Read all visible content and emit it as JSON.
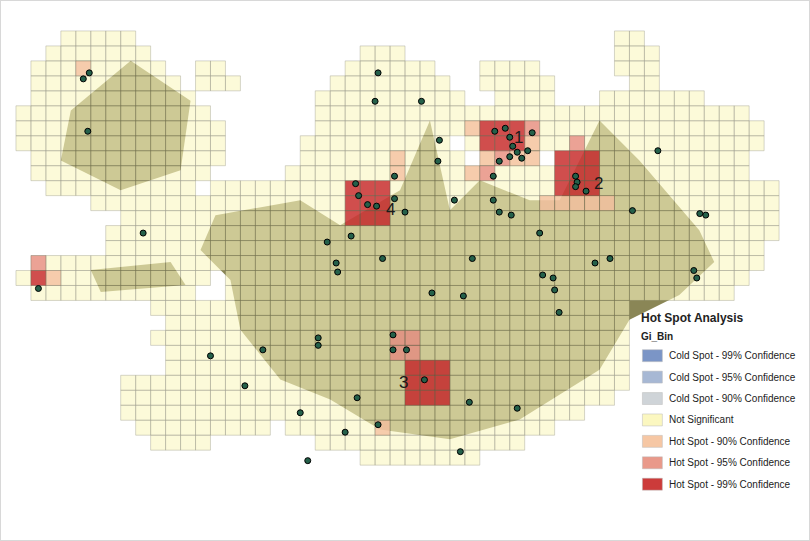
{
  "chart_data": {
    "type": "map",
    "tick_labels": false,
    "xlim": [
      0,
      54
    ],
    "ylim": [
      36,
      0
    ],
    "legend": "lower right",
    "legend_title": "Hot Spot Analysis",
    "legend_subtitle": "Gi_Bin",
    "classes": [
      {
        "name": "Cold Spot - 99% Confidence",
        "color": "#7b95c6"
      },
      {
        "name": "Cold Spot - 95% Confidence",
        "color": "#a7b8d4"
      },
      {
        "name": "Cold Spot - 90% Confidence",
        "color": "#cfd4d8"
      },
      {
        "name": "Not Significant",
        "color": "#fbf7c0",
        "rows": [
          {
            "row": 2,
            "cols": [
              [
                4,
                8
              ],
              [
                41,
                42
              ]
            ]
          },
          {
            "row": 3,
            "cols": [
              [
                3,
                9
              ],
              [
                24,
                26
              ],
              [
                41,
                43
              ]
            ]
          },
          {
            "row": 4,
            "cols": [
              [
                2,
                10
              ],
              [
                13,
                14
              ],
              [
                23,
                28
              ],
              [
                32,
                35
              ],
              [
                41,
                43
              ]
            ]
          },
          {
            "row": 5,
            "cols": [
              [
                2,
                11
              ],
              [
                13,
                15
              ],
              [
                22,
                29
              ],
              [
                32,
                36
              ],
              [
                42,
                43
              ]
            ]
          },
          {
            "row": 6,
            "cols": [
              [
                2,
                12
              ],
              [
                21,
                30
              ],
              [
                33,
                36
              ],
              [
                40,
                46
              ]
            ]
          },
          {
            "row": 7,
            "cols": [
              [
                1,
                13
              ],
              [
                21,
                31
              ],
              [
                32,
                37
              ],
              [
                38,
                49
              ]
            ]
          },
          {
            "row": 8,
            "cols": [
              [
                1,
                14
              ],
              [
                21,
                30
              ],
              [
                31,
                50
              ]
            ]
          },
          {
            "row": 9,
            "cols": [
              [
                1,
                14
              ],
              [
                20,
                29
              ],
              [
                31,
                50
              ]
            ]
          },
          {
            "row": 10,
            "cols": [
              [
                2,
                14
              ],
              [
                20,
                30
              ],
              [
                32,
                35
              ],
              [
                37,
                49
              ]
            ]
          },
          {
            "row": 11,
            "cols": [
              [
                2,
                13
              ],
              [
                19,
                31
              ],
              [
                32,
                49
              ]
            ]
          },
          {
            "row": 12,
            "cols": [
              [
                3,
                12
              ],
              [
                14,
                51
              ]
            ]
          },
          {
            "row": 13,
            "cols": [
              [
                6,
                12
              ],
              [
                13,
                51
              ]
            ]
          },
          {
            "row": 14,
            "cols": [
              [
                8,
                51
              ]
            ]
          },
          {
            "row": 15,
            "cols": [
              [
                7,
                51
              ]
            ]
          },
          {
            "row": 16,
            "cols": [
              [
                7,
                50
              ]
            ]
          },
          {
            "row": 17,
            "cols": [
              [
                2,
                13
              ],
              [
                14,
                50
              ]
            ]
          },
          {
            "row": 18,
            "cols": [
              [
                1,
                13
              ],
              [
                15,
                49
              ]
            ]
          },
          {
            "row": 19,
            "cols": [
              [
                2,
                12
              ],
              [
                15,
                48
              ]
            ]
          },
          {
            "row": 20,
            "cols": [
              [
                10,
                41
              ]
            ]
          },
          {
            "row": 21,
            "cols": [
              [
                11,
                41
              ]
            ]
          },
          {
            "row": 22,
            "cols": [
              [
                10,
                41
              ]
            ]
          },
          {
            "row": 23,
            "cols": [
              [
                11,
                41
              ]
            ]
          },
          {
            "row": 24,
            "cols": [
              [
                11,
                41
              ]
            ]
          },
          {
            "row": 25,
            "cols": [
              [
                8,
                41
              ]
            ]
          },
          {
            "row": 26,
            "cols": [
              [
                8,
                40
              ]
            ]
          },
          {
            "row": 27,
            "cols": [
              [
                8,
                38
              ]
            ]
          },
          {
            "row": 28,
            "cols": [
              [
                9,
                17
              ],
              [
                19,
                36
              ]
            ]
          },
          {
            "row": 29,
            "cols": [
              [
                10,
                13
              ],
              [
                21,
                34
              ]
            ]
          },
          {
            "row": 30,
            "cols": [
              [
                24,
                31
              ]
            ]
          }
        ]
      },
      {
        "name": "Hot Spot - 90% Confidence",
        "color": "#f6c7a4",
        "cells": [
          [
            31,
            8
          ],
          [
            35,
            9
          ],
          [
            34,
            10
          ],
          [
            35,
            10
          ],
          [
            32,
            10
          ],
          [
            26,
            10
          ],
          [
            26,
            11
          ],
          [
            31,
            11
          ],
          [
            36,
            13
          ],
          [
            37,
            13
          ],
          [
            38,
            13
          ],
          [
            39,
            13
          ],
          [
            40,
            13
          ],
          [
            25,
            28
          ],
          [
            3,
            18
          ],
          [
            5,
            4
          ]
        ]
      },
      {
        "name": "Hot Spot - 95% Confidence",
        "color": "#e9998a",
        "cells": [
          [
            33,
            10
          ],
          [
            35,
            8
          ],
          [
            38,
            9
          ],
          [
            26,
            22
          ],
          [
            27,
            22
          ],
          [
            26,
            23
          ],
          [
            27,
            23
          ],
          [
            2,
            17
          ],
          [
            32,
            11
          ]
        ]
      },
      {
        "name": "Hot Spot - 99% Confidence",
        "color": "#cc3b3a",
        "cells": [
          [
            32,
            8
          ],
          [
            33,
            8
          ],
          [
            34,
            8
          ],
          [
            32,
            9
          ],
          [
            33,
            9
          ],
          [
            34,
            9
          ],
          [
            37,
            10
          ],
          [
            38,
            10
          ],
          [
            39,
            10
          ],
          [
            37,
            11
          ],
          [
            38,
            11
          ],
          [
            39,
            11
          ],
          [
            37,
            12
          ],
          [
            38,
            12
          ],
          [
            39,
            12
          ],
          [
            23,
            12
          ],
          [
            24,
            12
          ],
          [
            25,
            12
          ],
          [
            23,
            13
          ],
          [
            24,
            13
          ],
          [
            25,
            13
          ],
          [
            23,
            14
          ],
          [
            24,
            14
          ],
          [
            25,
            14
          ],
          [
            27,
            24
          ],
          [
            28,
            24
          ],
          [
            29,
            24
          ],
          [
            27,
            25
          ],
          [
            28,
            25
          ],
          [
            29,
            25
          ],
          [
            27,
            26
          ],
          [
            28,
            26
          ],
          [
            29,
            26
          ],
          [
            2,
            18
          ]
        ]
      }
    ],
    "points": {
      "color": "#24604a",
      "marker": "circle",
      "x": [
        5.9,
        5.5,
        5.8,
        9.5,
        2.5,
        25,
        28.1,
        29.2,
        30.3,
        26.3,
        26.3,
        23.9,
        24.5,
        25.1,
        27,
        23.7,
        33,
        33.7,
        34,
        34.2,
        34.5,
        34,
        34.8,
        35.2,
        35.5,
        33.3,
        32.9,
        38.4,
        38.5,
        39.1,
        38.4,
        33.3,
        34.1,
        36,
        36.2,
        37,
        36.9,
        39.7,
        40.7,
        42.2,
        43.9,
        46.7,
        47.1,
        46.3,
        46.5,
        21.8,
        22.4,
        22.5,
        23.4,
        25.5,
        31.5,
        30.9,
        28.8,
        21.2,
        21.2,
        26.2,
        27.1,
        26.2,
        28.3,
        25.2,
        23.8,
        23,
        20.5,
        20,
        31.3,
        30.7,
        34.5,
        37.3,
        17.5,
        16.3,
        14,
        25.2,
        29.3,
        32.9
      ],
      "y": [
        4.8,
        5.2,
        8.7,
        15.5,
        19.2,
        6.7,
        6.7,
        10.7,
        13.3,
        11.7,
        13.2,
        13,
        13.6,
        13.7,
        14.1,
        12.2,
        8.7,
        8.5,
        9.1,
        9.7,
        10.1,
        10.4,
        10.5,
        10,
        8.8,
        10.7,
        11.7,
        11.7,
        12.1,
        12.7,
        12.4,
        14.1,
        14.3,
        15.5,
        18.3,
        19.3,
        18.5,
        17.5,
        17.2,
        14,
        10,
        14.2,
        14.3,
        18,
        18.5,
        16.1,
        17.5,
        18.1,
        15.7,
        17.2,
        17.2,
        19.7,
        19.5,
        22.5,
        23,
        23.3,
        23.3,
        22.3,
        25.3,
        28.3,
        26.5,
        28.8,
        30.7,
        27.5,
        26.8,
        30.1,
        27.2,
        20.8,
        23.3,
        25.7,
        23.7,
        4.8,
        9.3,
        13.3
      ]
    },
    "labels": [
      {
        "text": "1",
        "x": 34.6,
        "y": 9.1
      },
      {
        "text": "2",
        "x": 39.9,
        "y": 12.2
      },
      {
        "text": "3",
        "x": 26.9,
        "y": 25.5
      },
      {
        "text": "4",
        "x": 26.0,
        "y": 13.9
      }
    ]
  }
}
